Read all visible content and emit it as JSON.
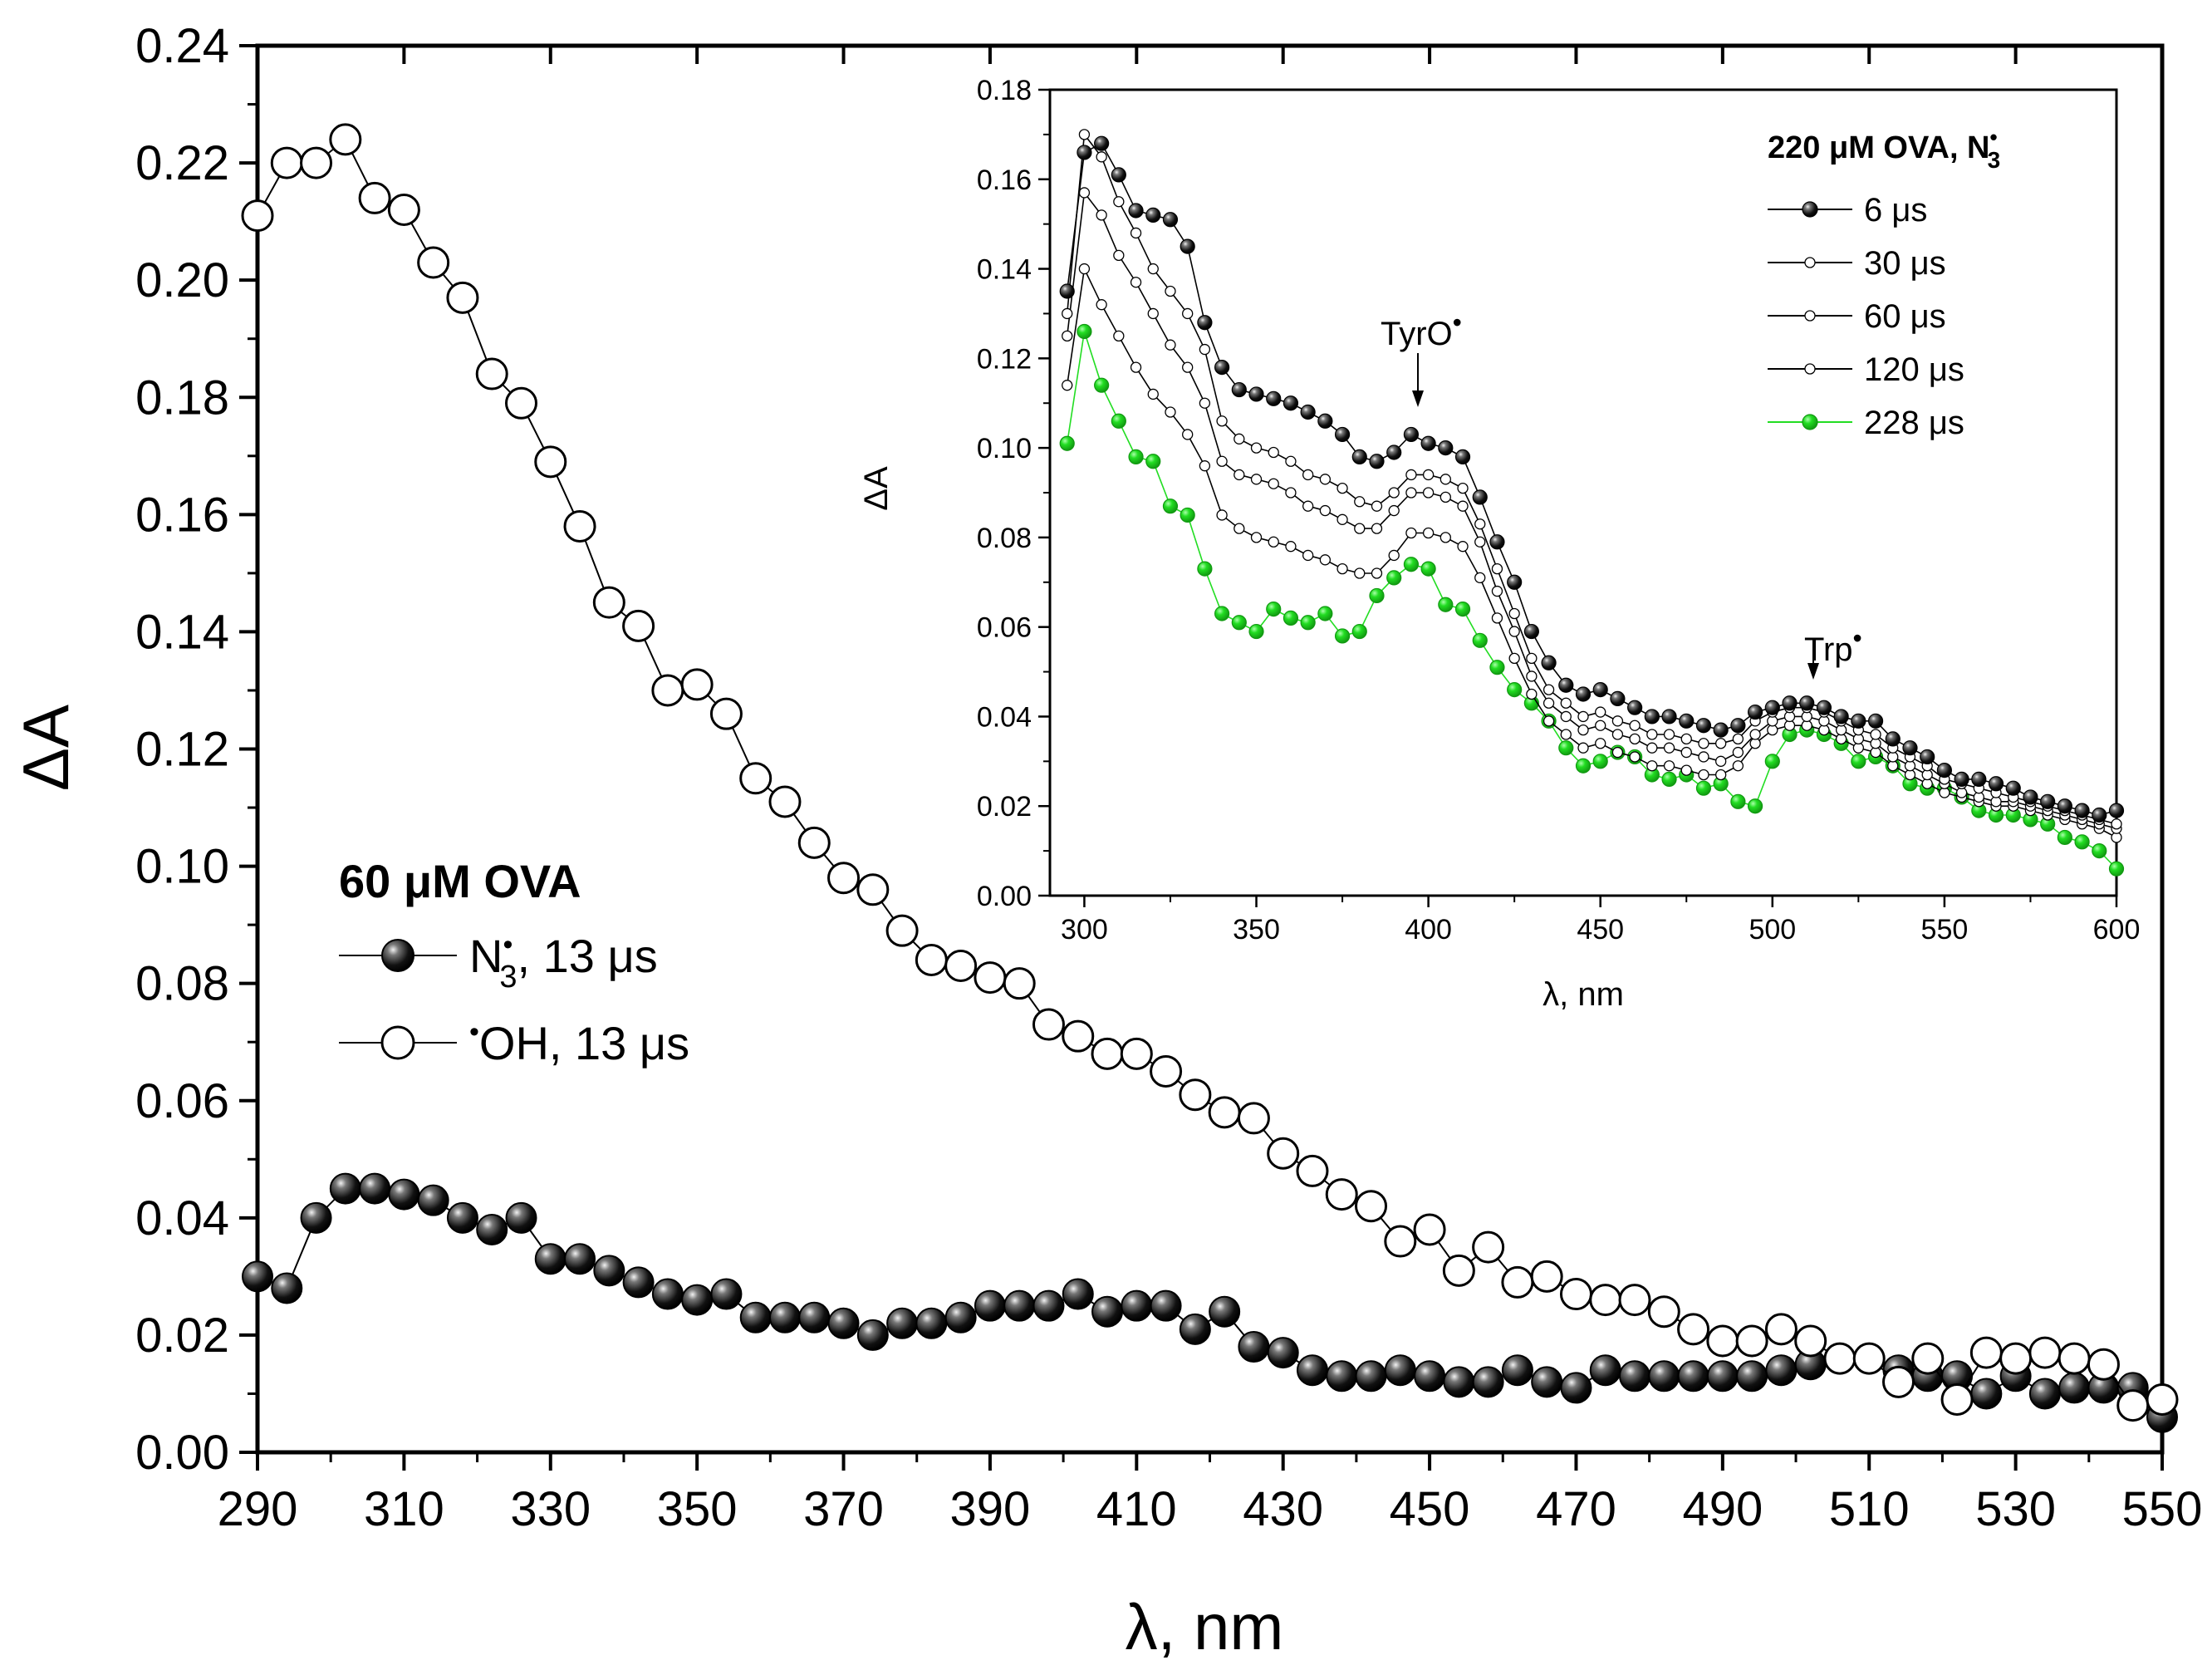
{
  "chart_data": [
    {
      "type": "scatter",
      "xlabel": "λ, nm",
      "ylabel": "ΔA",
      "xlim": [
        290,
        550
      ],
      "ylim": [
        0,
        0.24
      ],
      "xticks": [
        290,
        310,
        330,
        350,
        370,
        390,
        410,
        430,
        450,
        470,
        490,
        510,
        530,
        550
      ],
      "yticks": [
        0.0,
        0.02,
        0.04,
        0.06,
        0.08,
        0.1,
        0.12,
        0.14,
        0.16,
        0.18,
        0.2,
        0.22,
        0.24
      ],
      "legend_title": "60 μM OVA",
      "series": [
        {
          "name": "N3•, 13 μs",
          "label_main": "N",
          "label_sub": "3",
          "label_sup": "•",
          "label_rest": ", 13 μs",
          "marker": "filled-sphere",
          "x": [
            290,
            294,
            298,
            302,
            306,
            310,
            314,
            318,
            322,
            326,
            330,
            334,
            338,
            342,
            346,
            350,
            354,
            358,
            362,
            366,
            370,
            374,
            378,
            382,
            386,
            390,
            394,
            398,
            402,
            406,
            410,
            414,
            418,
            422,
            426,
            430,
            434,
            438,
            442,
            446,
            450,
            454,
            458,
            462,
            466,
            470,
            474,
            478,
            482,
            486,
            490,
            494,
            498,
            502,
            506,
            510,
            514,
            518,
            522,
            526,
            530,
            534,
            538,
            542,
            546,
            550
          ],
          "y": [
            0.03,
            0.028,
            0.04,
            0.045,
            0.045,
            0.044,
            0.043,
            0.04,
            0.038,
            0.04,
            0.033,
            0.033,
            0.031,
            0.029,
            0.027,
            0.026,
            0.027,
            0.023,
            0.023,
            0.023,
            0.022,
            0.02,
            0.022,
            0.022,
            0.023,
            0.025,
            0.025,
            0.025,
            0.027,
            0.024,
            0.025,
            0.025,
            0.021,
            0.024,
            0.018,
            0.017,
            0.014,
            0.013,
            0.013,
            0.014,
            0.013,
            0.012,
            0.012,
            0.014,
            0.012,
            0.011,
            0.014,
            0.013,
            0.013,
            0.013,
            0.013,
            0.013,
            0.014,
            0.015,
            0.016,
            0.016,
            0.014,
            0.013,
            0.013,
            0.01,
            0.013,
            0.01,
            0.011,
            0.011,
            0.011,
            0.006
          ]
        },
        {
          "name": "•OH, 13 μs",
          "label_sup": "•",
          "label_rest": "OH, 13 μs",
          "marker": "open-circle",
          "x": [
            290,
            294,
            298,
            302,
            306,
            310,
            314,
            318,
            322,
            326,
            330,
            334,
            338,
            342,
            346,
            350,
            354,
            358,
            362,
            366,
            370,
            374,
            378,
            382,
            386,
            390,
            394,
            398,
            402,
            406,
            410,
            414,
            418,
            422,
            426,
            430,
            434,
            438,
            442,
            446,
            450,
            454,
            458,
            462,
            466,
            470,
            474,
            478,
            482,
            486,
            490,
            494,
            498,
            502,
            506,
            510,
            514,
            518,
            522,
            526,
            530,
            534,
            538,
            542,
            546,
            550
          ],
          "y": [
            0.211,
            0.22,
            0.22,
            0.224,
            0.214,
            0.212,
            0.203,
            0.197,
            0.184,
            0.179,
            0.169,
            0.158,
            0.145,
            0.141,
            0.13,
            0.131,
            0.126,
            0.115,
            0.111,
            0.104,
            0.098,
            0.096,
            0.089,
            0.084,
            0.083,
            0.081,
            0.08,
            0.073,
            0.071,
            0.068,
            0.068,
            0.065,
            0.061,
            0.058,
            0.057,
            0.051,
            0.048,
            0.044,
            0.042,
            0.036,
            0.038,
            0.031,
            0.035,
            0.029,
            0.03,
            0.027,
            0.026,
            0.026,
            0.024,
            0.021,
            0.019,
            0.019,
            0.021,
            0.019,
            0.016,
            0.016,
            0.012,
            0.016,
            0.009,
            0.017,
            0.016,
            0.017,
            0.016,
            0.015,
            0.008,
            0.009
          ]
        }
      ]
    },
    {
      "type": "line",
      "xlabel": "λ, nm",
      "ylabel": "ΔA",
      "xlim": [
        290,
        600
      ],
      "ylim": [
        0,
        0.18
      ],
      "xticks": [
        300,
        350,
        400,
        450,
        500,
        550,
        600
      ],
      "yticks": [
        0.0,
        0.02,
        0.04,
        0.06,
        0.08,
        0.1,
        0.12,
        0.14,
        0.16,
        0.18
      ],
      "legend_title_main": "220 μM OVA, N",
      "legend_title_sub": "3",
      "legend_title_sup": "•",
      "x": [
        295,
        300,
        305,
        310,
        315,
        320,
        325,
        330,
        335,
        340,
        345,
        350,
        355,
        360,
        365,
        370,
        375,
        380,
        385,
        390,
        395,
        400,
        405,
        410,
        415,
        420,
        425,
        430,
        435,
        440,
        445,
        450,
        455,
        460,
        465,
        470,
        475,
        480,
        485,
        490,
        495,
        500,
        505,
        510,
        515,
        520,
        525,
        530,
        535,
        540,
        545,
        550,
        555,
        560,
        565,
        570,
        575,
        580,
        585,
        590,
        595,
        600
      ],
      "annotations": [
        {
          "text": "TyrO",
          "sup": "•",
          "x": 397,
          "y": 0.108
        },
        {
          "text": "Trp",
          "sup": "•",
          "x": 510,
          "y": 0.05
        }
      ],
      "series": [
        {
          "name": "6 μs",
          "color": "#000000",
          "marker": "filled-sphere",
          "y": [
            0.135,
            0.166,
            0.168,
            0.161,
            0.153,
            0.152,
            0.151,
            0.145,
            0.128,
            0.118,
            0.113,
            0.112,
            0.111,
            0.11,
            0.108,
            0.106,
            0.103,
            0.098,
            0.097,
            0.099,
            0.103,
            0.101,
            0.1,
            0.098,
            0.089,
            0.079,
            0.07,
            0.059,
            0.052,
            0.047,
            0.045,
            0.046,
            0.044,
            0.042,
            0.04,
            0.04,
            0.039,
            0.038,
            0.037,
            0.038,
            0.041,
            0.042,
            0.043,
            0.043,
            0.042,
            0.04,
            0.039,
            0.039,
            0.035,
            0.033,
            0.031,
            0.028,
            0.026,
            0.026,
            0.025,
            0.024,
            0.022,
            0.021,
            0.02,
            0.019,
            0.018,
            0.019
          ]
        },
        {
          "name": "30 μs",
          "color": "#000000",
          "marker": "open-small",
          "y": [
            0.13,
            0.17,
            0.165,
            0.155,
            0.148,
            0.14,
            0.135,
            0.13,
            0.122,
            0.106,
            0.102,
            0.1,
            0.099,
            0.097,
            0.094,
            0.093,
            0.091,
            0.088,
            0.087,
            0.09,
            0.094,
            0.094,
            0.093,
            0.091,
            0.083,
            0.073,
            0.063,
            0.053,
            0.046,
            0.043,
            0.04,
            0.041,
            0.039,
            0.038,
            0.036,
            0.036,
            0.035,
            0.034,
            0.034,
            0.035,
            0.039,
            0.041,
            0.042,
            0.042,
            0.041,
            0.039,
            0.037,
            0.036,
            0.033,
            0.031,
            0.029,
            0.026,
            0.025,
            0.024,
            0.023,
            0.022,
            0.021,
            0.02,
            0.019,
            0.018,
            0.017,
            0.016
          ]
        },
        {
          "name": "60 μs",
          "color": "#000000",
          "marker": "open-small",
          "y": [
            0.125,
            0.157,
            0.152,
            0.143,
            0.137,
            0.13,
            0.123,
            0.118,
            0.11,
            0.097,
            0.094,
            0.093,
            0.092,
            0.09,
            0.087,
            0.086,
            0.084,
            0.082,
            0.082,
            0.086,
            0.09,
            0.09,
            0.089,
            0.087,
            0.079,
            0.068,
            0.059,
            0.049,
            0.043,
            0.04,
            0.037,
            0.038,
            0.036,
            0.035,
            0.033,
            0.033,
            0.032,
            0.031,
            0.03,
            0.032,
            0.036,
            0.039,
            0.04,
            0.04,
            0.039,
            0.037,
            0.035,
            0.034,
            0.031,
            0.029,
            0.027,
            0.025,
            0.023,
            0.022,
            0.021,
            0.021,
            0.02,
            0.019,
            0.018,
            0.017,
            0.016,
            0.015
          ]
        },
        {
          "name": "120 μs",
          "color": "#000000",
          "marker": "open-small",
          "y": [
            0.114,
            0.14,
            0.132,
            0.125,
            0.118,
            0.112,
            0.108,
            0.103,
            0.096,
            0.085,
            0.082,
            0.08,
            0.079,
            0.078,
            0.076,
            0.075,
            0.073,
            0.072,
            0.072,
            0.076,
            0.081,
            0.081,
            0.08,
            0.078,
            0.071,
            0.062,
            0.053,
            0.045,
            0.039,
            0.036,
            0.033,
            0.034,
            0.032,
            0.031,
            0.029,
            0.029,
            0.028,
            0.027,
            0.027,
            0.029,
            0.034,
            0.037,
            0.038,
            0.038,
            0.037,
            0.035,
            0.033,
            0.032,
            0.029,
            0.027,
            0.025,
            0.023,
            0.022,
            0.021,
            0.02,
            0.02,
            0.019,
            0.018,
            0.017,
            0.016,
            0.015,
            0.013
          ]
        },
        {
          "name": "228 μs",
          "color": "#22dd22",
          "marker": "filled-green",
          "y": [
            0.101,
            0.126,
            0.114,
            0.106,
            0.098,
            0.097,
            0.087,
            0.085,
            0.073,
            0.063,
            0.061,
            0.059,
            0.064,
            0.062,
            0.061,
            0.063,
            0.058,
            0.059,
            0.067,
            0.071,
            0.074,
            0.073,
            0.065,
            0.064,
            0.057,
            0.051,
            0.046,
            0.043,
            0.039,
            0.033,
            0.029,
            0.03,
            0.032,
            0.031,
            0.027,
            0.026,
            0.027,
            0.024,
            0.025,
            0.021,
            0.02,
            0.03,
            0.036,
            0.037,
            0.036,
            0.034,
            0.03,
            0.031,
            0.029,
            0.025,
            0.024,
            0.024,
            0.022,
            0.019,
            0.018,
            0.018,
            0.017,
            0.016,
            0.013,
            0.012,
            0.01,
            0.006
          ]
        }
      ]
    }
  ]
}
